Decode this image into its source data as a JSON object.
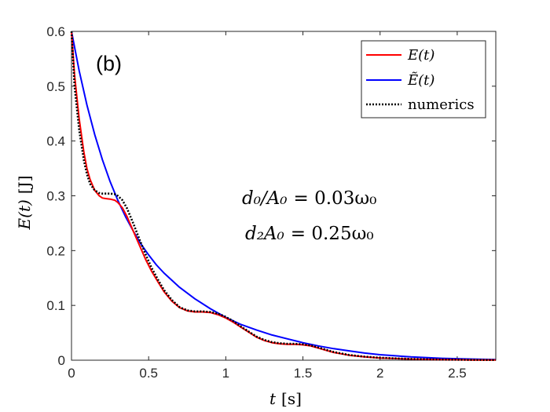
{
  "chart_data": {
    "type": "line",
    "panel_label": "(b)",
    "xlabel": {
      "var": "t",
      "unit": "[s]"
    },
    "ylabel": {
      "var": "E(t)",
      "unit": "[J]"
    },
    "xlim": [
      0,
      2.75
    ],
    "ylim": [
      0,
      0.6
    ],
    "xticks": [
      0,
      0.5,
      1,
      1.5,
      2,
      2.5
    ],
    "xtick_labels": [
      "0",
      "0.5",
      "1",
      "1.5",
      "2",
      "2.5"
    ],
    "yticks": [
      0,
      0.1,
      0.2,
      0.3,
      0.4,
      0.5,
      0.6
    ],
    "ytick_labels": [
      "0",
      "0.1",
      "0.2",
      "0.3",
      "0.4",
      "0.5",
      "0.6"
    ],
    "legend_position": "top-right",
    "annotations": [
      {
        "lhs": "d₀/A₀",
        "rhs": "= 0.03ω₀"
      },
      {
        "lhs": "d₂A₀",
        "rhs": "= 0.25ω₀"
      }
    ],
    "series": [
      {
        "name": "E(t)",
        "color": "#ff0000",
        "style": "solid",
        "x": [
          0,
          0.02,
          0.05,
          0.08,
          0.1,
          0.12,
          0.15,
          0.18,
          0.2,
          0.22,
          0.25,
          0.28,
          0.3,
          0.33,
          0.36,
          0.4,
          0.44,
          0.48,
          0.52,
          0.56,
          0.6,
          0.65,
          0.7,
          0.75,
          0.8,
          0.85,
          0.9,
          0.95,
          1.0,
          1.05,
          1.1,
          1.15,
          1.2,
          1.25,
          1.3,
          1.35,
          1.4,
          1.45,
          1.5,
          1.55,
          1.6,
          1.65,
          1.7,
          1.8,
          1.9,
          2.0,
          2.1,
          2.2,
          2.3,
          2.4,
          2.5,
          2.6,
          2.75
        ],
        "y": [
          0.6,
          0.52,
          0.44,
          0.38,
          0.35,
          0.33,
          0.31,
          0.3,
          0.296,
          0.295,
          0.294,
          0.292,
          0.288,
          0.278,
          0.262,
          0.236,
          0.21,
          0.184,
          0.162,
          0.143,
          0.125,
          0.108,
          0.096,
          0.09,
          0.088,
          0.088,
          0.087,
          0.083,
          0.077,
          0.069,
          0.06,
          0.051,
          0.042,
          0.036,
          0.032,
          0.03,
          0.029,
          0.029,
          0.028,
          0.026,
          0.022,
          0.018,
          0.014,
          0.009,
          0.006,
          0.004,
          0.003,
          0.002,
          0.0015,
          0.001,
          0.0008,
          0.0005,
          0.0003
        ]
      },
      {
        "name": "Ẽ(t)",
        "color": "#0000ff",
        "style": "solid",
        "x": [
          0,
          0.05,
          0.1,
          0.15,
          0.2,
          0.25,
          0.3,
          0.35,
          0.4,
          0.45,
          0.5,
          0.55,
          0.6,
          0.7,
          0.8,
          0.9,
          1.0,
          1.1,
          1.2,
          1.3,
          1.4,
          1.5,
          1.6,
          1.7,
          1.8,
          1.9,
          2.0,
          2.2,
          2.4,
          2.6,
          2.75
        ],
        "y": [
          0.6,
          0.528,
          0.466,
          0.412,
          0.366,
          0.326,
          0.292,
          0.262,
          0.236,
          0.212,
          0.192,
          0.174,
          0.159,
          0.133,
          0.112,
          0.094,
          0.078,
          0.065,
          0.055,
          0.046,
          0.039,
          0.032,
          0.026,
          0.021,
          0.017,
          0.013,
          0.01,
          0.006,
          0.0035,
          0.002,
          0.0012
        ]
      },
      {
        "name": "numerics",
        "color": "#000000",
        "style": "dotted",
        "x": [
          0,
          0.02,
          0.05,
          0.08,
          0.1,
          0.12,
          0.15,
          0.18,
          0.2,
          0.22,
          0.25,
          0.28,
          0.3,
          0.33,
          0.36,
          0.4,
          0.44,
          0.48,
          0.52,
          0.56,
          0.6,
          0.65,
          0.7,
          0.75,
          0.8,
          0.85,
          0.9,
          0.95,
          1.0,
          1.05,
          1.1,
          1.15,
          1.2,
          1.25,
          1.3,
          1.35,
          1.4,
          1.45,
          1.5,
          1.55,
          1.6,
          1.65,
          1.7,
          1.8,
          1.9,
          2.0,
          2.1,
          2.2,
          2.3,
          2.4,
          2.5,
          2.6,
          2.75
        ],
        "y": [
          0.6,
          0.5,
          0.42,
          0.365,
          0.34,
          0.322,
          0.31,
          0.305,
          0.304,
          0.304,
          0.304,
          0.303,
          0.3,
          0.292,
          0.277,
          0.25,
          0.221,
          0.193,
          0.168,
          0.147,
          0.128,
          0.11,
          0.097,
          0.091,
          0.089,
          0.089,
          0.088,
          0.085,
          0.079,
          0.071,
          0.061,
          0.052,
          0.043,
          0.037,
          0.033,
          0.031,
          0.03,
          0.03,
          0.029,
          0.027,
          0.023,
          0.019,
          0.015,
          0.0095,
          0.0065,
          0.0045,
          0.0033,
          0.0023,
          0.0017,
          0.0012,
          0.0009,
          0.0006,
          0.0004
        ]
      }
    ]
  }
}
